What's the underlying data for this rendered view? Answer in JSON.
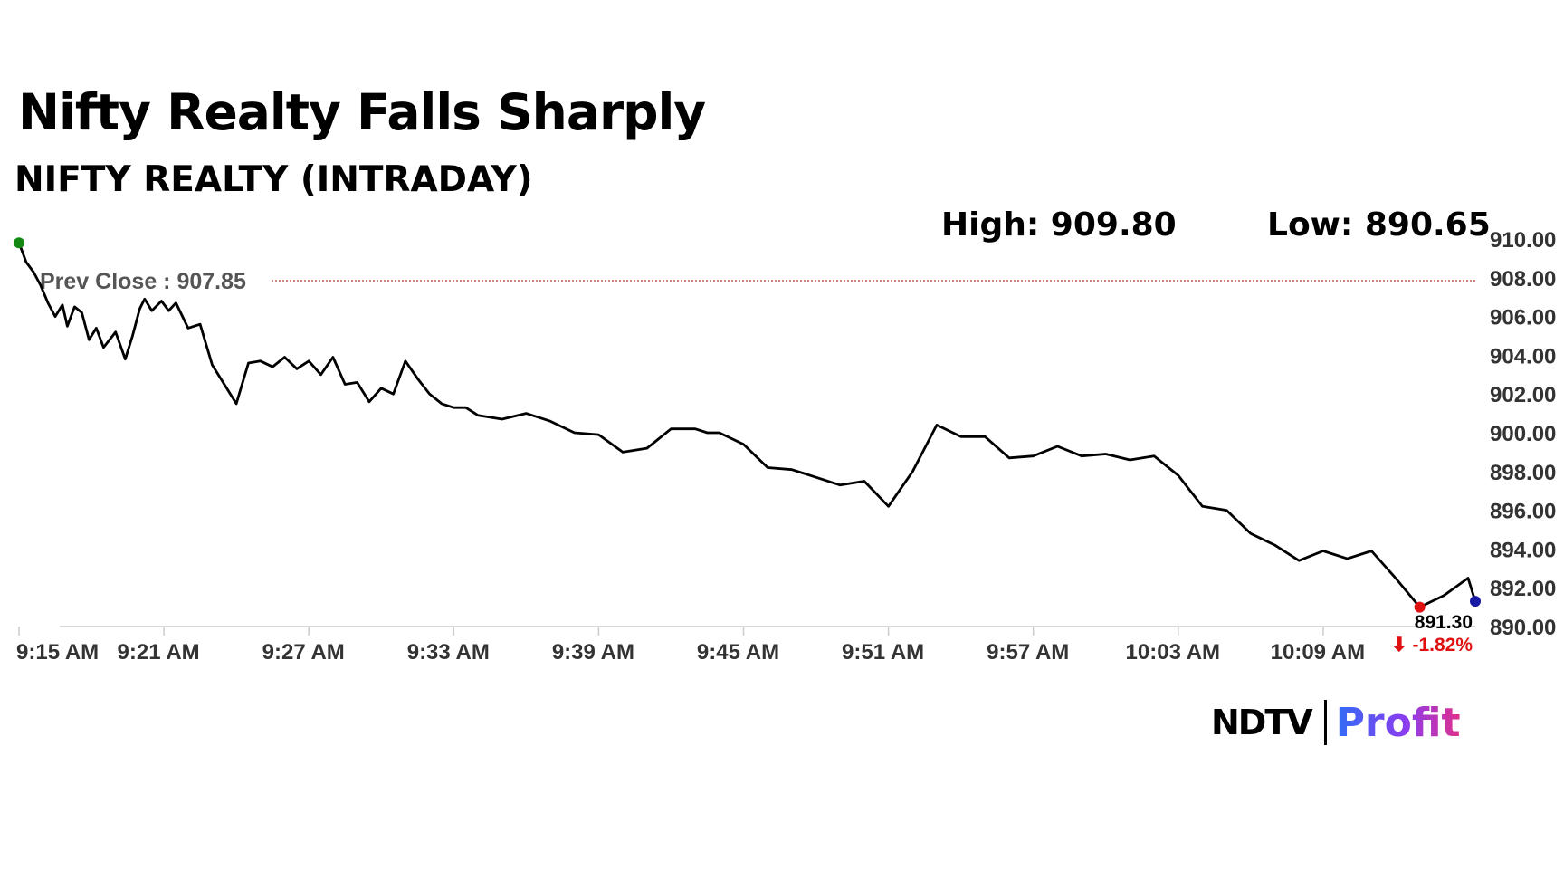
{
  "chart_data": {
    "type": "line",
    "title": "Nifty Realty Falls Sharply",
    "subtitle": "NIFTY REALTY (INTRADAY)",
    "high_label": "High: 909.80",
    "low_label": "Low: 890.65",
    "prev_close": 907.85,
    "prev_close_label": "Prev Close : 907.85",
    "last_value_label": "891.30",
    "change_label": "⬇ -1.82%",
    "x_tick_labels": [
      "9:15 AM",
      "9:21 AM",
      "9:27 AM",
      "9:33 AM",
      "9:39 AM",
      "9:45 AM",
      "9:51 AM",
      "9:57 AM",
      "10:03 AM",
      "10:09 AM"
    ],
    "y_tick_labels": [
      "910.00",
      "908.00",
      "906.00",
      "904.00",
      "902.00",
      "900.00",
      "898.00",
      "896.00",
      "894.00",
      "892.00",
      "890.00"
    ],
    "ylim": [
      890,
      910
    ],
    "xlim_minutes": [
      0,
      60.3
    ],
    "x_minutes_from_open": [
      0,
      0.3,
      0.6,
      0.9,
      1.2,
      1.5,
      1.8,
      2.0,
      2.3,
      2.6,
      2.9,
      3.2,
      3.5,
      4.0,
      4.4,
      4.7,
      5.0,
      5.2,
      5.5,
      5.9,
      6.2,
      6.5,
      7.0,
      7.5,
      8.0,
      8.5,
      9.0,
      9.5,
      10.0,
      10.5,
      11.0,
      11.5,
      12.0,
      12.5,
      13.0,
      13.5,
      14.0,
      14.5,
      15.0,
      15.5,
      16.0,
      16.5,
      17.0,
      17.5,
      18.0,
      18.5,
      19.0,
      20.0,
      21.0,
      22.0,
      23.0,
      24.0,
      25.0,
      26.0,
      27.0,
      28.0,
      28.5,
      29.0,
      30.0,
      31.0,
      32.0,
      33.0,
      34.0,
      35.0,
      36.0,
      37.0,
      38.0,
      39.0,
      40.0,
      41.0,
      42.0,
      43.0,
      44.0,
      45.0,
      46.0,
      47.0,
      48.0,
      49.0,
      50.0,
      51.0,
      52.0,
      53.0,
      54.0,
      55.0,
      56.0,
      57.0,
      58.0,
      59.0,
      60.0,
      60.3
    ],
    "values": [
      909.8,
      908.8,
      908.3,
      907.6,
      906.7,
      906.0,
      906.6,
      905.5,
      906.5,
      906.2,
      904.8,
      905.4,
      904.4,
      905.2,
      903.8,
      905.0,
      906.4,
      906.9,
      906.3,
      906.8,
      906.3,
      906.7,
      905.4,
      905.6,
      903.5,
      902.5,
      901.5,
      903.6,
      903.7,
      903.4,
      903.9,
      903.3,
      903.7,
      903.0,
      903.9,
      902.5,
      902.6,
      901.6,
      902.3,
      902.0,
      903.7,
      902.8,
      902.0,
      901.5,
      901.3,
      901.3,
      900.9,
      900.7,
      901.0,
      900.6,
      900.0,
      899.9,
      899.0,
      899.2,
      900.2,
      900.2,
      900.0,
      900.0,
      899.4,
      898.2,
      898.1,
      897.7,
      897.3,
      897.5,
      896.2,
      898.0,
      900.4,
      899.8,
      899.8,
      898.7,
      898.8,
      899.3,
      898.8,
      898.9,
      898.6,
      898.8,
      897.8,
      896.2,
      896.0,
      894.8,
      894.2,
      893.4,
      893.9,
      893.5,
      893.9,
      892.5,
      891.0,
      891.6,
      892.5,
      891.3
    ]
  },
  "brand": {
    "ndtv": "NDTV",
    "profit": "Profit"
  }
}
